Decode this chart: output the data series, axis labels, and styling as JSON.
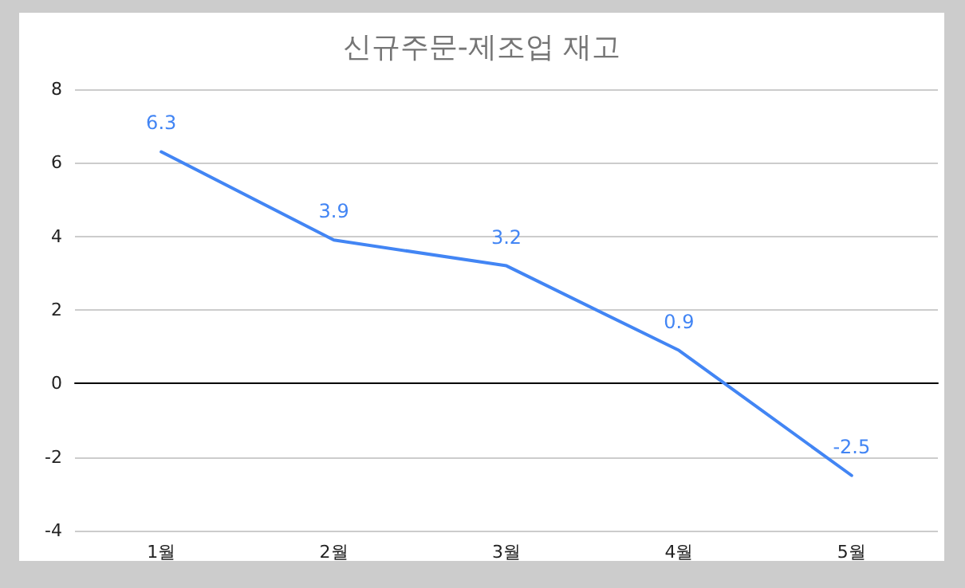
{
  "chart_data": {
    "type": "line",
    "title": "신규주문-제조업 재고",
    "categories": [
      "1월",
      "2월",
      "3월",
      "4월",
      "5월"
    ],
    "series": [
      {
        "color": "#4285f4",
        "values": [
          6.3,
          3.9,
          3.2,
          0.9,
          -2.5
        ]
      }
    ],
    "ylim": [
      -4,
      8
    ],
    "yticks": [
      -4,
      -2,
      0,
      2,
      4,
      6,
      8
    ],
    "grid": "y",
    "marker": "none",
    "line_style": "solid",
    "data_labels": true
  }
}
